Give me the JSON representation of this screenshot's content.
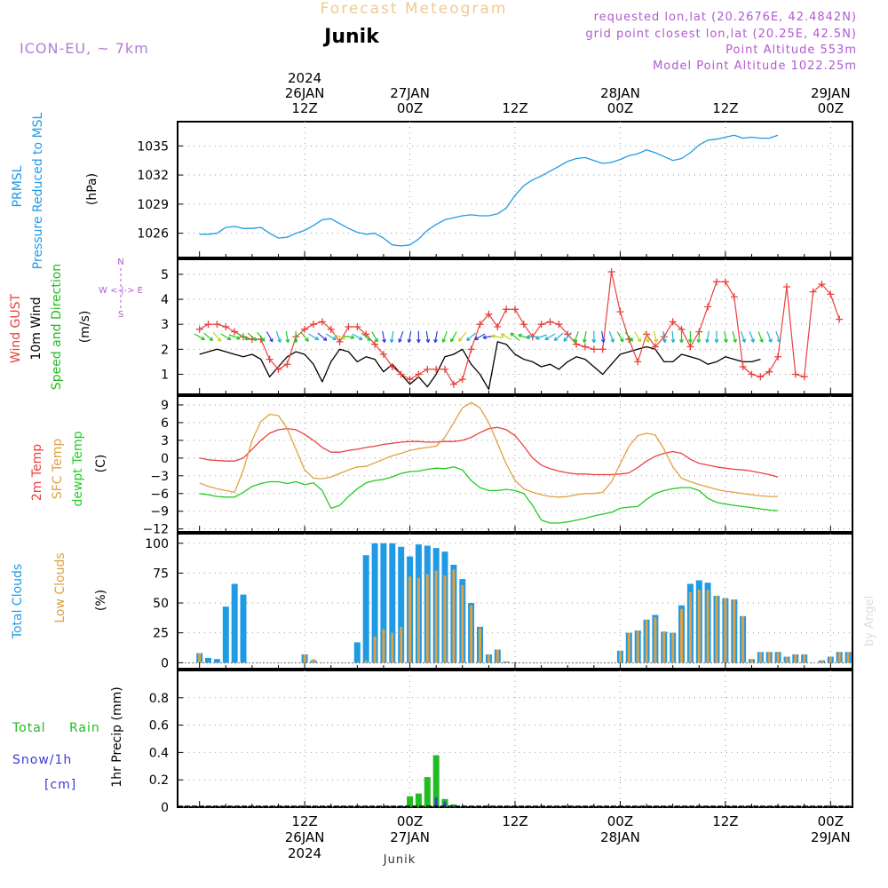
{
  "header": {
    "title": "Forecast Meteogram",
    "location": "Junik",
    "model": "ICON-EU, ~ 7km",
    "requested": "requested lon,lat (20.2676E, 42.4842N)",
    "gridpoint": "grid point closest lon,lat (20.25E, 42.5N)",
    "altitude": "Point Altitude 553m",
    "model_altitude": "Model Point Altitude 1022.25m",
    "footer_location": "Junik",
    "watermark": "by Angel"
  },
  "colors": {
    "title": "#f2c98f",
    "model": "#b57bd6",
    "info": "#b05ad0",
    "pressure": "#1f9be6",
    "gust": "#e8413c",
    "wind": "#000000",
    "dir": "#22bb22",
    "temp2m": "#e8413c",
    "sfc": "#e0a040",
    "dewpt": "#22cc22",
    "total_clouds": "#1f9be6",
    "low_clouds": "#e0a040",
    "rain": "#22bb22",
    "snow": "#3b3bd6",
    "grid": "#999999"
  },
  "chart_data": {
    "time_axis": {
      "top_labels": [
        {
          "t": 12,
          "lines": [
            "2024",
            "26JAN",
            "12Z"
          ]
        },
        {
          "t": 24,
          "lines": [
            "27JAN",
            "00Z"
          ]
        },
        {
          "t": 36,
          "lines": [
            "12Z"
          ]
        },
        {
          "t": 48,
          "lines": [
            "28JAN",
            "00Z"
          ]
        },
        {
          "t": 60,
          "lines": [
            "12Z"
          ]
        },
        {
          "t": 72,
          "lines": [
            "29JAN",
            "00Z"
          ]
        }
      ],
      "bottom_labels": [
        {
          "t": 12,
          "lines": [
            "12Z",
            "26JAN",
            "2024"
          ]
        },
        {
          "t": 24,
          "lines": [
            "00Z",
            "27JAN"
          ]
        },
        {
          "t": 36,
          "lines": [
            "12Z"
          ]
        },
        {
          "t": 48,
          "lines": [
            "00Z",
            "28JAN"
          ]
        },
        {
          "t": 60,
          "lines": [
            "12Z"
          ]
        },
        {
          "t": 72,
          "lines": [
            "00Z",
            "29JAN"
          ]
        }
      ]
    },
    "pressure": {
      "type": "line",
      "ylabels": [
        "PRMSL",
        "Pressure Reduced to MSL"
      ],
      "unit": "(hPa)",
      "ylim": [
        1023.5,
        1037.5
      ],
      "yticks": [
        1026,
        1029,
        1032,
        1035
      ],
      "values": [
        1025.9,
        1025.9,
        1026.0,
        1026.6,
        1026.7,
        1026.5,
        1026.5,
        1026.6,
        1026.0,
        1025.5,
        1025.6,
        1026.0,
        1026.3,
        1026.8,
        1027.4,
        1027.5,
        1027.0,
        1026.5,
        1026.1,
        1025.9,
        1026.0,
        1025.5,
        1024.8,
        1024.7,
        1024.8,
        1025.4,
        1026.3,
        1026.9,
        1027.4,
        1027.6,
        1027.8,
        1027.9,
        1027.8,
        1027.8,
        1028.0,
        1028.6,
        1029.9,
        1030.9,
        1031.5,
        1031.9,
        1032.4,
        1032.9,
        1033.4,
        1033.7,
        1033.8,
        1033.5,
        1033.2,
        1033.3,
        1033.6,
        1034.0,
        1034.2,
        1034.6,
        1034.3,
        1033.9,
        1033.5,
        1033.7,
        1034.3,
        1035.1,
        1035.6,
        1035.7,
        1035.9,
        1036.1,
        1035.8,
        1035.9,
        1035.8,
        1035.8,
        1036.1
      ]
    },
    "wind": {
      "type": "line",
      "ylabels": [
        "Wind GUST",
        "10m Wind",
        "Speed and Direction"
      ],
      "unit": "(m/s)",
      "compass": [
        "N",
        "W  <-|->  E",
        "S"
      ],
      "ylim": [
        0.2,
        5.6
      ],
      "yticks": [
        1,
        2,
        3,
        4,
        5
      ],
      "gust": [
        2.8,
        3.0,
        3.0,
        2.9,
        2.7,
        2.5,
        2.4,
        2.4,
        1.6,
        1.2,
        1.4,
        2.5,
        2.8,
        3.0,
        3.1,
        2.8,
        2.3,
        2.9,
        2.9,
        2.6,
        2.2,
        1.8,
        1.3,
        1.0,
        0.8,
        1.0,
        1.2,
        1.2,
        1.2,
        0.6,
        0.8,
        2.0,
        3.0,
        3.4,
        2.9,
        3.6,
        3.6,
        3.0,
        2.5,
        3.0,
        3.1,
        3.0,
        2.6,
        2.2,
        2.1,
        2.0,
        2.0,
        5.1,
        3.5,
        2.4,
        1.5,
        2.6,
        2.1,
        2.5,
        3.1,
        2.8,
        2.1,
        2.7,
        3.7,
        4.7,
        4.7,
        4.1,
        1.3,
        1.0,
        0.9,
        1.1,
        1.7,
        4.5,
        1.0,
        0.9,
        4.3,
        4.6,
        4.2,
        3.2
      ],
      "speed": [
        1.8,
        1.9,
        2.0,
        1.9,
        1.8,
        1.7,
        1.8,
        1.6,
        0.9,
        1.3,
        1.7,
        1.9,
        1.8,
        1.4,
        0.7,
        1.5,
        2.0,
        1.9,
        1.5,
        1.7,
        1.6,
        1.1,
        1.4,
        1.0,
        0.6,
        0.9,
        0.5,
        1.0,
        1.7,
        1.8,
        2.0,
        1.4,
        1.0,
        0.4,
        2.3,
        2.2,
        1.8,
        1.6,
        1.5,
        1.3,
        1.4,
        1.2,
        1.5,
        1.7,
        1.6,
        1.3,
        1.0,
        1.4,
        1.8,
        1.9,
        2.0,
        2.1,
        2.0,
        1.5,
        1.5,
        1.8,
        1.7,
        1.6,
        1.4,
        1.5,
        1.7,
        1.6,
        1.5,
        1.5,
        1.6
      ],
      "dir_deg": [
        300,
        310,
        320,
        300,
        290,
        300,
        310,
        320,
        330,
        340,
        350,
        0,
        320,
        300,
        310,
        300,
        290,
        280,
        300,
        310,
        330,
        350,
        10,
        20,
        10,
        0,
        350,
        10,
        20,
        30,
        40,
        50,
        60,
        80,
        100,
        120,
        130,
        110,
        90,
        70,
        60,
        50,
        40,
        20,
        10,
        0,
        350,
        340,
        330,
        320,
        330,
        340,
        345,
        350,
        355,
        0,
        0,
        5,
        10,
        0,
        350,
        345,
        340,
        340,
        340,
        340,
        340
      ],
      "note": "direction arrows colored by speed"
    },
    "temperature": {
      "type": "line",
      "ylabels": [
        "2m Temp",
        "SFC Temp",
        "dewpt Temp"
      ],
      "unit": "(C)",
      "ylim": [
        -12.5,
        10.5
      ],
      "yticks": [
        -12,
        -9,
        -6,
        -3,
        0,
        3,
        6,
        9
      ],
      "t2m": [
        0.0,
        -0.3,
        -0.4,
        -0.5,
        -0.5,
        0.0,
        1.5,
        3.0,
        4.2,
        4.8,
        5.0,
        4.8,
        4.0,
        3.0,
        1.8,
        1.0,
        1.0,
        1.3,
        1.5,
        1.8,
        2.0,
        2.3,
        2.5,
        2.7,
        2.8,
        2.8,
        2.7,
        2.7,
        2.8,
        2.8,
        3.0,
        3.5,
        4.3,
        5.0,
        5.2,
        4.8,
        3.8,
        2.0,
        0.0,
        -1.2,
        -1.8,
        -2.2,
        -2.5,
        -2.7,
        -2.7,
        -2.8,
        -2.8,
        -2.8,
        -2.7,
        -2.5,
        -1.6,
        -0.5,
        0.3,
        0.8,
        1.1,
        0.8,
        -0.2,
        -0.9,
        -1.2,
        -1.5,
        -1.7,
        -1.9,
        -2.0,
        -2.2,
        -2.5,
        -2.8,
        -3.2
      ],
      "sfc": [
        -4.2,
        -4.8,
        -5.2,
        -5.5,
        -5.8,
        -2.0,
        3.0,
        6.2,
        7.4,
        7.2,
        5.0,
        1.5,
        -2.0,
        -3.4,
        -3.5,
        -3.2,
        -2.6,
        -2.0,
        -1.5,
        -1.4,
        -0.8,
        -0.2,
        0.4,
        0.8,
        1.3,
        1.6,
        1.8,
        2.0,
        3.5,
        6.0,
        8.5,
        9.4,
        8.5,
        6.0,
        2.5,
        -1.0,
        -3.8,
        -5.2,
        -5.8,
        -6.2,
        -6.5,
        -6.6,
        -6.5,
        -6.2,
        -6.0,
        -6.0,
        -5.8,
        -4.0,
        -1.0,
        2.0,
        3.8,
        4.2,
        3.9,
        1.5,
        -1.5,
        -3.4,
        -4.0,
        -4.5,
        -4.9,
        -5.3,
        -5.6,
        -5.8,
        -6.0,
        -6.2,
        -6.4,
        -6.5,
        -6.5
      ],
      "dewpt": [
        -6.0,
        -6.2,
        -6.5,
        -6.6,
        -6.6,
        -5.8,
        -4.8,
        -4.3,
        -4.0,
        -4.0,
        -4.3,
        -4.0,
        -4.5,
        -4.2,
        -5.5,
        -8.5,
        -8.0,
        -6.5,
        -5.2,
        -4.2,
        -3.8,
        -3.6,
        -3.2,
        -2.6,
        -2.3,
        -2.2,
        -1.9,
        -1.7,
        -1.8,
        -1.5,
        -2.0,
        -3.8,
        -5.0,
        -5.5,
        -5.5,
        -5.3,
        -5.5,
        -6.0,
        -8.0,
        -10.5,
        -11.0,
        -11.0,
        -10.8,
        -10.5,
        -10.2,
        -9.8,
        -9.5,
        -9.2,
        -8.5,
        -8.3,
        -8.2,
        -7.0,
        -6.0,
        -5.5,
        -5.2,
        -5.0,
        -5.0,
        -5.5,
        -6.8,
        -7.5,
        -7.8,
        -8.0,
        -8.2,
        -8.4,
        -8.6,
        -8.8,
        -8.9
      ]
    },
    "clouds": {
      "type": "bar",
      "ylabels": [
        "Total Clouds",
        "Low Clouds"
      ],
      "unit": "(%)",
      "ylim": [
        -5,
        108
      ],
      "yticks": [
        0,
        25,
        50,
        75,
        100
      ],
      "total": [
        8,
        4,
        3,
        47,
        66,
        57,
        0,
        0,
        0,
        0,
        0,
        0,
        7,
        2,
        0,
        0,
        0,
        0,
        17,
        90,
        100,
        100,
        100,
        97,
        89,
        99,
        98,
        96,
        93,
        82,
        70,
        50,
        30,
        7,
        11,
        1,
        0,
        0,
        0,
        0,
        0,
        0,
        0,
        0,
        0,
        0,
        0,
        0,
        10,
        25,
        27,
        36,
        40,
        26,
        25,
        48,
        66,
        69,
        67,
        56,
        54,
        53,
        39,
        3,
        9,
        9,
        9,
        5,
        7,
        7,
        0,
        2,
        5,
        9,
        9
      ],
      "low": [
        8,
        0,
        0,
        0,
        0,
        0,
        0,
        0,
        0,
        0,
        0,
        0,
        7,
        3,
        0,
        0,
        0,
        0,
        0,
        2,
        22,
        28,
        25,
        30,
        72,
        71,
        74,
        77,
        73,
        78,
        65,
        48,
        29,
        7,
        11,
        1,
        0,
        0,
        0,
        0,
        0,
        0,
        0,
        0,
        0,
        0,
        0,
        0,
        10,
        25,
        27,
        36,
        38,
        26,
        25,
        45,
        59,
        61,
        61,
        56,
        54,
        53,
        39,
        3,
        9,
        9,
        9,
        5,
        7,
        7,
        0,
        2,
        5,
        9,
        9
      ]
    },
    "precip": {
      "type": "bar",
      "ylabels": [
        "1hr Precip (mm)"
      ],
      "legend": [
        "Total",
        "Rain",
        "Snow/1h",
        "[cm]"
      ],
      "ylim": [
        0,
        1.0
      ],
      "yticks": [
        0,
        0.2,
        0.4,
        0.6,
        0.8
      ],
      "ytick_labels": [
        "0",
        "0.2",
        "0.4",
        "0.6",
        "0.8"
      ],
      "rain": [
        0,
        0,
        0,
        0,
        0,
        0,
        0,
        0,
        0,
        0,
        0,
        0,
        0,
        0,
        0,
        0,
        0,
        0,
        0,
        0,
        0,
        0,
        0,
        0,
        0.08,
        0.1,
        0.22,
        0.38,
        0.06,
        0.02,
        0,
        0,
        0,
        0,
        0,
        0,
        0,
        0,
        0,
        0,
        0,
        0,
        0,
        0,
        0,
        0,
        0,
        0,
        0,
        0,
        0,
        0,
        0,
        0,
        0,
        0,
        0,
        0,
        0,
        0,
        0,
        0,
        0,
        0,
        0,
        0,
        0,
        0,
        0,
        0,
        0,
        0,
        0,
        0,
        0
      ],
      "snow": [
        0,
        0,
        0,
        0,
        0,
        0,
        0,
        0,
        0,
        0,
        0,
        0,
        0,
        0,
        0,
        0,
        0,
        0,
        0,
        0,
        0,
        0,
        0,
        0,
        0,
        0,
        0,
        0.07,
        0.04,
        0.01,
        0,
        0,
        0,
        0,
        0,
        0,
        0,
        0,
        0,
        0,
        0,
        0,
        0,
        0,
        0,
        0,
        0,
        0,
        0,
        0,
        0,
        0,
        0,
        0,
        0,
        0,
        0,
        0,
        0,
        0,
        0,
        0,
        0,
        0,
        0,
        0,
        0,
        0,
        0,
        0,
        0,
        0,
        0,
        0,
        0,
        0
      ]
    }
  }
}
